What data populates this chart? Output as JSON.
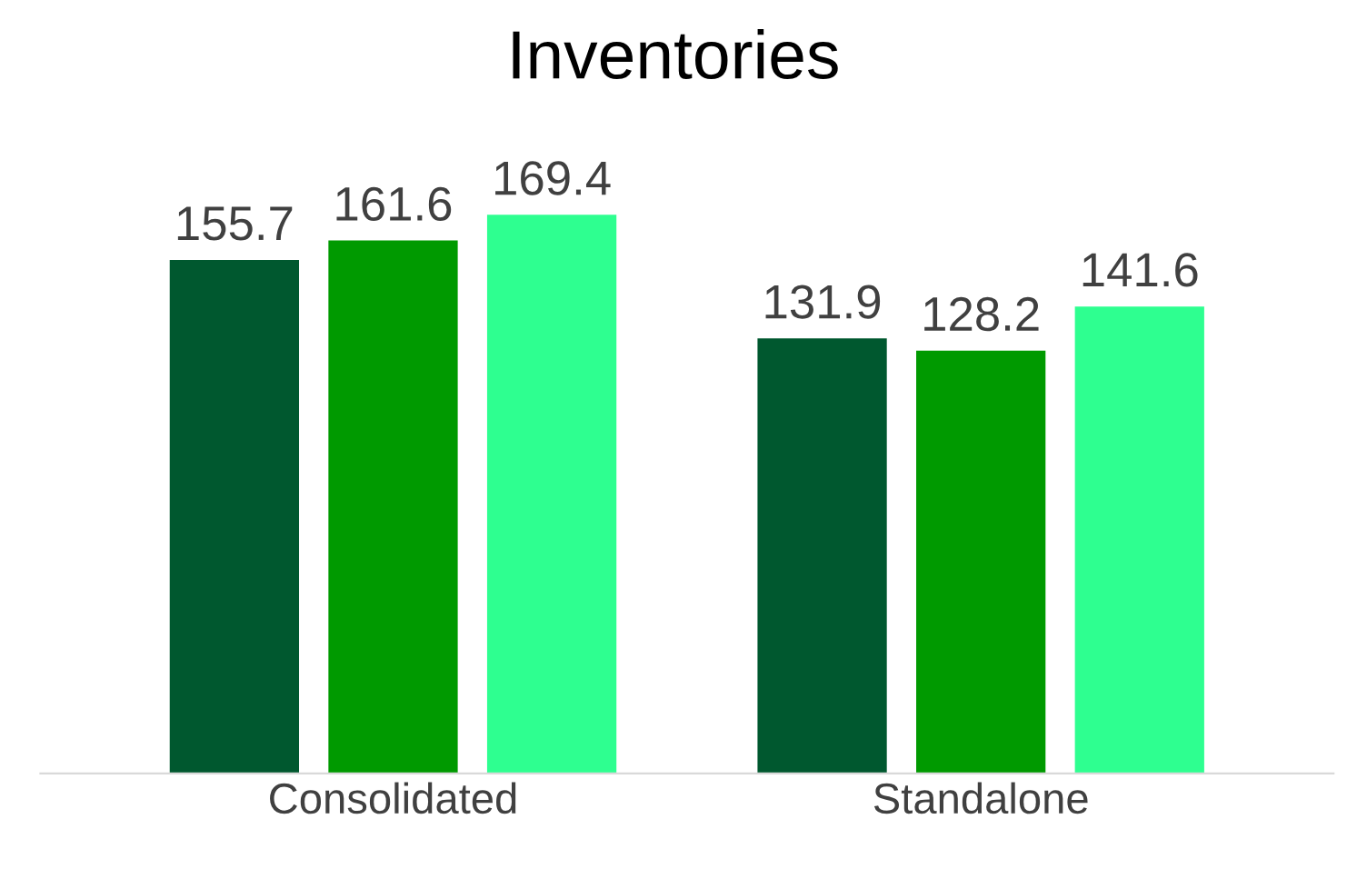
{
  "chart_data": {
    "type": "bar",
    "title": "Inventories",
    "categories": [
      "Consolidated",
      "Standalone"
    ],
    "series": [
      {
        "color": "#00582f",
        "values": [
          155.7,
          131.9
        ]
      },
      {
        "color": "#009a00",
        "values": [
          161.6,
          128.2
        ]
      },
      {
        "color": "#2eff90",
        "values": [
          169.4,
          141.6
        ]
      }
    ],
    "data_labels": true,
    "tick_labels": "x"
  }
}
